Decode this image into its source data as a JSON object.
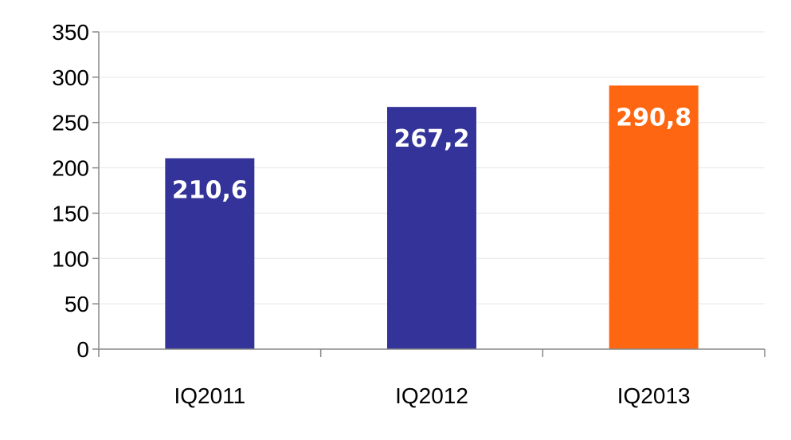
{
  "chart_data": {
    "type": "bar",
    "categories": [
      "IQ2011",
      "IQ2012",
      "IQ2013"
    ],
    "values": [
      210.6,
      267.2,
      290.8
    ],
    "data_labels": [
      "210,6",
      "267,2",
      "290,8"
    ],
    "bar_colors": [
      "#333399",
      "#333399",
      "#ff6611"
    ],
    "title": "",
    "xlabel": "",
    "ylabel": "",
    "ylim": [
      0,
      350
    ],
    "yticks": [
      0,
      50,
      100,
      150,
      200,
      250,
      300,
      350
    ],
    "grid": true,
    "legend": "none"
  }
}
